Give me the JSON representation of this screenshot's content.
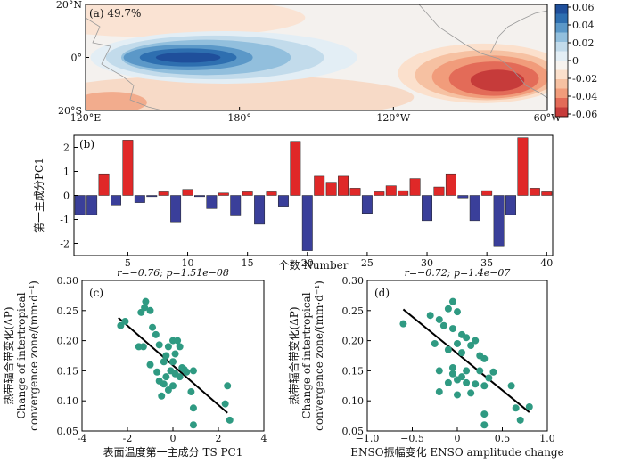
{
  "chart_data": [
    {
      "panel": "(a)",
      "type": "heatmap",
      "title": "49.7%",
      "x_ticks": [
        "120°E",
        "180°",
        "120°W",
        "60°W"
      ],
      "y_ticks": [
        "20°N",
        "0°",
        "20°S"
      ],
      "xlim_deg_east": [
        120,
        300
      ],
      "ylim_deg": [
        -20,
        20
      ],
      "colorbar_ticks": [
        "0.06",
        "0.04",
        "0.02",
        "0",
        "-0.02",
        "-0.04",
        "-0.06"
      ],
      "colorbar_colors": [
        "#1f4f9b",
        "#2e6fb0",
        "#5b98c8",
        "#92bfdd",
        "#c2dbeb",
        "#e3eef5",
        "#f7f3ef",
        "#fbe0cc",
        "#f6c1a2",
        "#f19c7b",
        "#e36b58",
        "#c63b3a"
      ],
      "features": [
        {
          "kind": "positive",
          "level": 0.05,
          "center_lon": 160,
          "center_lat": 0,
          "lon_extent": [
            135,
            205
          ],
          "lat_extent": [
            -4,
            4
          ]
        },
        {
          "kind": "negative",
          "level": -0.05,
          "center_lon": 275,
          "center_lat": -6,
          "lon_extent": [
            255,
            290
          ],
          "lat_extent": [
            -16,
            2
          ]
        }
      ]
    },
    {
      "panel": "(b)",
      "type": "bar",
      "ylabel": "第一主成分PC1",
      "xlabel": "个数 Number",
      "x_ticks": [
        5,
        10,
        15,
        20,
        25,
        30,
        35,
        40
      ],
      "y_ticks": [
        -2,
        -1,
        0,
        1,
        2
      ],
      "ylim": [
        -2.5,
        2.5
      ],
      "xlim": [
        0.5,
        40.5
      ],
      "positive_color": "#e02828",
      "negative_color": "#3a3f9a",
      "categories": [
        1,
        2,
        3,
        4,
        5,
        6,
        7,
        8,
        9,
        10,
        11,
        12,
        13,
        14,
        15,
        16,
        17,
        18,
        19,
        20,
        21,
        22,
        23,
        24,
        25,
        26,
        27,
        28,
        29,
        30,
        31,
        32,
        33,
        34,
        35,
        36,
        37,
        38,
        39,
        40
      ],
      "values": [
        -0.8,
        -0.8,
        0.9,
        -0.4,
        2.3,
        -0.3,
        -0.05,
        0.15,
        -1.1,
        0.25,
        -0.05,
        -0.55,
        0.1,
        -0.85,
        0.15,
        -1.2,
        0.15,
        -0.45,
        2.25,
        -2.3,
        0.8,
        0.55,
        0.8,
        0.3,
        -0.75,
        0.15,
        0.4,
        0.2,
        0.7,
        -1.05,
        0.35,
        0.9,
        -0.1,
        -1.05,
        0.2,
        -2.1,
        -0.8,
        2.4,
        0.3,
        0.15
      ]
    },
    {
      "panel": "(c)",
      "type": "scatter",
      "title": "r=−0.76; p=1.51e−08",
      "xlabel": "表面温度第一主成分 TS PC1",
      "ylabel_line1": "热带辐合带变化(ΔP)",
      "ylabel_line2": "Change of intertropical",
      "ylabel_line3": "convergence zone/(mm·d⁻¹)",
      "x_ticks": [
        -4,
        -2,
        0,
        2,
        4
      ],
      "y_ticks": [
        0.05,
        0.1,
        0.15,
        0.2,
        0.25,
        0.3
      ],
      "xlim": [
        -4,
        4
      ],
      "ylim": [
        0.05,
        0.3
      ],
      "point_color": "#2f9a82",
      "fit_line": {
        "x": [
          -2.4,
          2.4
        ],
        "y": [
          0.238,
          0.08
        ]
      },
      "points": [
        [
          -2.3,
          0.225
        ],
        [
          -2.1,
          0.232
        ],
        [
          -1.2,
          0.265
        ],
        [
          -1.25,
          0.255
        ],
        [
          -1.4,
          0.247
        ],
        [
          -1.0,
          0.25
        ],
        [
          -0.9,
          0.222
        ],
        [
          -0.75,
          0.21
        ],
        [
          -1.5,
          0.19
        ],
        [
          -1.3,
          0.19
        ],
        [
          -0.6,
          0.193
        ],
        [
          -1.0,
          0.16
        ],
        [
          -0.7,
          0.148
        ],
        [
          -0.4,
          0.165
        ],
        [
          -0.2,
          0.19
        ],
        [
          0.0,
          0.2
        ],
        [
          0.2,
          0.2
        ],
        [
          0.3,
          0.19
        ],
        [
          -0.3,
          0.175
        ],
        [
          0.1,
          0.178
        ],
        [
          0.0,
          0.165
        ],
        [
          0.4,
          0.155
        ],
        [
          0.5,
          0.152
        ],
        [
          0.6,
          0.148
        ],
        [
          0.9,
          0.15
        ],
        [
          0.3,
          0.14
        ],
        [
          -0.1,
          0.15
        ],
        [
          0.1,
          0.145
        ],
        [
          -0.3,
          0.14
        ],
        [
          -0.6,
          0.133
        ],
        [
          -0.4,
          0.128
        ],
        [
          0.0,
          0.125
        ],
        [
          -0.2,
          0.118
        ],
        [
          -0.5,
          0.108
        ],
        [
          0.8,
          0.115
        ],
        [
          0.9,
          0.088
        ],
        [
          2.4,
          0.125
        ],
        [
          2.3,
          0.095
        ],
        [
          2.5,
          0.068
        ],
        [
          0.9,
          0.06
        ]
      ]
    },
    {
      "panel": "(d)",
      "type": "scatter",
      "title": "r=−0.72; p=1.4e−07",
      "xlabel": "ENSO振幅变化 ENSO amplitude change",
      "ylabel_line1": "热带辐合带变化(ΔP)",
      "ylabel_line2": "Change of intertropical",
      "ylabel_line3": "convergence zone/(mm·d⁻¹)",
      "x_ticks": [
        "−1.0",
        "−0.5",
        "0",
        "0.5",
        "1.0"
      ],
      "y_ticks": [
        0.05,
        0.1,
        0.15,
        0.2,
        0.25,
        0.3
      ],
      "xlim": [
        -1.0,
        1.0
      ],
      "ylim": [
        0.05,
        0.3
      ],
      "point_color": "#2f9a82",
      "fit_line": {
        "x": [
          -0.6,
          0.8
        ],
        "y": [
          0.252,
          0.081
        ]
      },
      "points": [
        [
          -0.6,
          0.228
        ],
        [
          -0.3,
          0.242
        ],
        [
          -0.2,
          0.235
        ],
        [
          -0.05,
          0.265
        ],
        [
          -0.1,
          0.253
        ],
        [
          0.0,
          0.248
        ],
        [
          -0.15,
          0.225
        ],
        [
          -0.05,
          0.22
        ],
        [
          0.05,
          0.21
        ],
        [
          0.1,
          0.205
        ],
        [
          0.2,
          0.2
        ],
        [
          -0.25,
          0.195
        ],
        [
          0.0,
          0.195
        ],
        [
          0.15,
          0.192
        ],
        [
          -0.1,
          0.185
        ],
        [
          0.05,
          0.18
        ],
        [
          0.25,
          0.175
        ],
        [
          0.3,
          0.17
        ],
        [
          -0.2,
          0.15
        ],
        [
          -0.05,
          0.155
        ],
        [
          0.1,
          0.15
        ],
        [
          0.25,
          0.15
        ],
        [
          0.4,
          0.148
        ],
        [
          0.35,
          0.138
        ],
        [
          0.0,
          0.135
        ],
        [
          0.1,
          0.13
        ],
        [
          0.2,
          0.128
        ],
        [
          -0.1,
          0.13
        ],
        [
          0.05,
          0.14
        ],
        [
          0.3,
          0.125
        ],
        [
          0.6,
          0.125
        ],
        [
          -0.2,
          0.115
        ],
        [
          0.15,
          0.113
        ],
        [
          0.0,
          0.11
        ],
        [
          0.3,
          0.078
        ],
        [
          0.65,
          0.088
        ],
        [
          0.8,
          0.09
        ],
        [
          0.7,
          0.068
        ],
        [
          0.3,
          0.06
        ],
        [
          -0.05,
          0.145
        ]
      ]
    }
  ]
}
